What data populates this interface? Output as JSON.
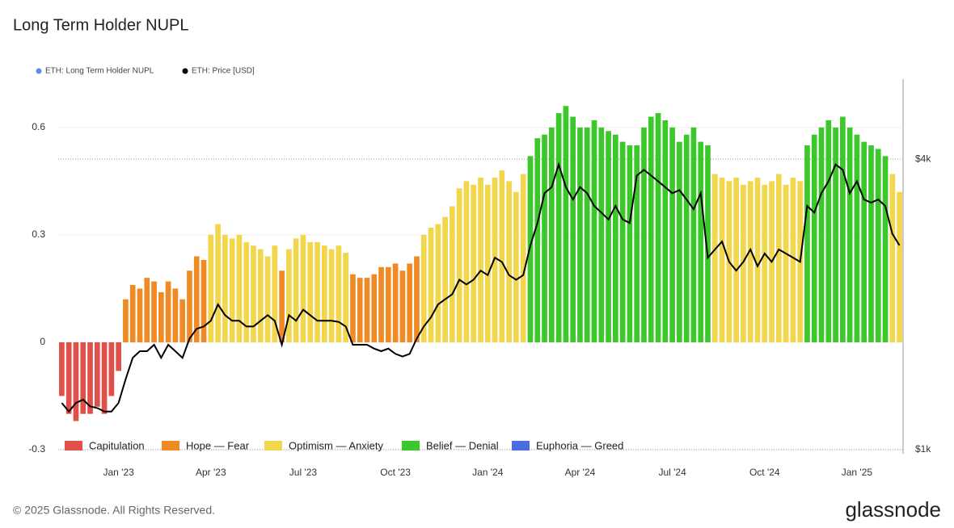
{
  "chart_data": {
    "type": "bar",
    "title": "Long Term Holder NUPL",
    "categories": [
      null,
      null,
      null,
      null,
      null,
      null,
      null,
      null,
      "Jan '23",
      null,
      null,
      null,
      null,
      null,
      null,
      null,
      null,
      null,
      null,
      null,
      null,
      "Apr '23",
      null,
      null,
      null,
      null,
      null,
      null,
      null,
      null,
      null,
      null,
      null,
      null,
      "Jul '23",
      null,
      null,
      null,
      null,
      null,
      null,
      null,
      null,
      null,
      null,
      null,
      null,
      "Oct '23",
      null,
      null,
      null,
      null,
      null,
      null,
      null,
      null,
      null,
      null,
      null,
      null,
      "Jan '24",
      null,
      null,
      null,
      null,
      null,
      null,
      null,
      null,
      null,
      null,
      null,
      null,
      "Apr '24",
      null,
      null,
      null,
      null,
      null,
      null,
      null,
      null,
      null,
      null,
      null,
      null,
      "Jul '24",
      null,
      null,
      null,
      null,
      null,
      null,
      null,
      null,
      null,
      null,
      null,
      null,
      "Oct '24",
      null,
      null,
      null,
      null,
      null,
      null,
      null,
      null,
      null,
      null,
      null,
      null,
      "Jan '25",
      null,
      null,
      null,
      null,
      null,
      null
    ],
    "series": [
      {
        "name": "ETH: Long Term Holder NUPL",
        "color": "#5b8def",
        "values": [
          -0.15,
          -0.2,
          -0.22,
          -0.2,
          -0.2,
          -0.18,
          -0.2,
          -0.15,
          -0.08,
          0.12,
          0.16,
          0.15,
          0.18,
          0.17,
          0.14,
          0.17,
          0.15,
          0.12,
          0.2,
          0.24,
          0.23,
          0.3,
          0.33,
          0.3,
          0.29,
          0.3,
          0.28,
          0.27,
          0.26,
          0.24,
          0.27,
          0.2,
          0.26,
          0.29,
          0.3,
          0.28,
          0.28,
          0.27,
          0.26,
          0.27,
          0.25,
          0.19,
          0.18,
          0.18,
          0.19,
          0.21,
          0.21,
          0.22,
          0.2,
          0.22,
          0.24,
          0.3,
          0.32,
          0.33,
          0.35,
          0.38,
          0.43,
          0.45,
          0.44,
          0.46,
          0.44,
          0.46,
          0.48,
          0.45,
          0.42,
          0.47,
          0.52,
          0.57,
          0.58,
          0.6,
          0.64,
          0.66,
          0.63,
          0.6,
          0.6,
          0.62,
          0.6,
          0.59,
          0.58,
          0.56,
          0.55,
          0.55,
          0.6,
          0.63,
          0.64,
          0.62,
          0.6,
          0.56,
          0.58,
          0.6,
          0.56,
          0.55,
          0.47,
          0.46,
          0.45,
          0.46,
          0.44,
          0.45,
          0.46,
          0.44,
          0.45,
          0.47,
          0.44,
          0.46,
          0.45,
          0.55,
          0.58,
          0.6,
          0.62,
          0.6,
          0.63,
          0.6,
          0.58,
          0.56,
          0.55,
          0.54,
          0.52,
          0.47,
          0.42
        ]
      },
      {
        "name": "ETH: Price [USD]",
        "color": "#000000",
        "axis": "y2",
        "values": [
          1250,
          1200,
          1250,
          1270,
          1230,
          1220,
          1200,
          1200,
          1250,
          1400,
          1550,
          1600,
          1600,
          1650,
          1550,
          1650,
          1600,
          1550,
          1700,
          1780,
          1800,
          1850,
          2000,
          1900,
          1850,
          1850,
          1800,
          1800,
          1850,
          1900,
          1850,
          1650,
          1900,
          1850,
          1950,
          1900,
          1850,
          1850,
          1850,
          1840,
          1800,
          1650,
          1650,
          1650,
          1620,
          1600,
          1620,
          1580,
          1560,
          1580,
          1700,
          1800,
          1880,
          2000,
          2050,
          2100,
          2250,
          2200,
          2250,
          2350,
          2300,
          2500,
          2450,
          2300,
          2250,
          2300,
          2650,
          2950,
          3400,
          3500,
          3900,
          3500,
          3300,
          3500,
          3400,
          3200,
          3100,
          3000,
          3200,
          3000,
          2950,
          3700,
          3800,
          3700,
          3600,
          3500,
          3400,
          3450,
          3300,
          3150,
          3400,
          2500,
          2600,
          2700,
          2450,
          2350,
          2450,
          2600,
          2400,
          2550,
          2450,
          2600,
          2550,
          2500,
          2450,
          3200,
          3100,
          3400,
          3600,
          3900,
          3800,
          3400,
          3600,
          3300,
          3250,
          3300,
          3200,
          2800,
          2650
        ]
      }
    ],
    "zones": [
      {
        "name": "Capitulation",
        "color": "#e0504a"
      },
      {
        "name": "Hope — Fear",
        "color": "#f08a24"
      },
      {
        "name": "Optimism — Anxiety",
        "color": "#f2d64b"
      },
      {
        "name": "Belief — Denial",
        "color": "#3cc82a"
      },
      {
        "name": "Euphoria — Greed",
        "color": "#4a6ee0"
      }
    ],
    "zone_index": [
      0,
      0,
      0,
      0,
      0,
      0,
      0,
      0,
      0,
      1,
      1,
      1,
      1,
      1,
      1,
      1,
      1,
      1,
      1,
      1,
      1,
      2,
      2,
      2,
      2,
      2,
      2,
      2,
      2,
      2,
      2,
      1,
      2,
      2,
      2,
      2,
      2,
      2,
      2,
      2,
      2,
      1,
      1,
      1,
      1,
      1,
      1,
      1,
      1,
      1,
      1,
      2,
      2,
      2,
      2,
      2,
      2,
      2,
      2,
      2,
      2,
      2,
      2,
      2,
      2,
      2,
      3,
      3,
      3,
      3,
      3,
      3,
      3,
      3,
      3,
      3,
      3,
      3,
      3,
      3,
      3,
      3,
      3,
      3,
      3,
      3,
      3,
      3,
      3,
      3,
      3,
      3,
      2,
      2,
      2,
      2,
      2,
      2,
      2,
      2,
      2,
      2,
      2,
      2,
      2,
      3,
      3,
      3,
      3,
      3,
      3,
      3,
      3,
      3,
      3,
      3,
      3,
      2,
      2
    ],
    "ylim": [
      -0.3,
      0.735
    ],
    "yticks": [
      -0.3,
      0,
      0.3,
      0.6
    ],
    "y2lim": [
      1000,
      5860
    ],
    "y2ticks": [
      {
        "value": 1000,
        "label": "$1k"
      },
      {
        "value": 4000,
        "label": "$4k"
      }
    ],
    "y2log": true,
    "grid": true
  },
  "footer": {
    "copyright": "© 2025 Glassnode. All Rights Reserved.",
    "brand": "glassnode"
  }
}
